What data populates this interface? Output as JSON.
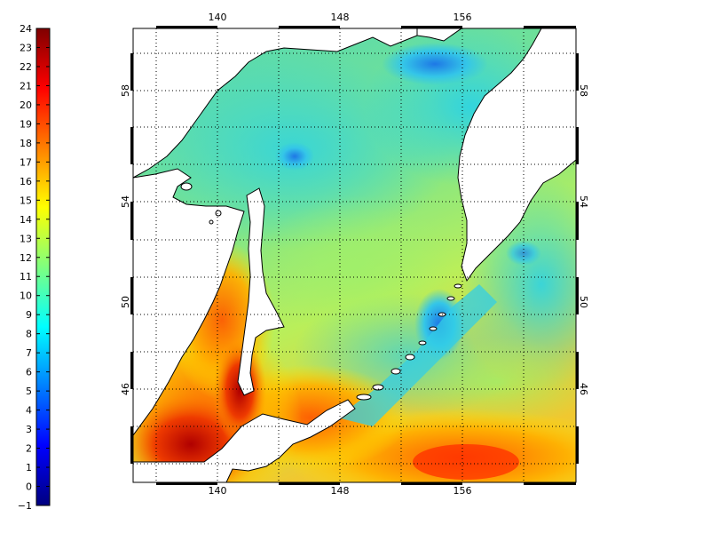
{
  "colorbar": {
    "ticks": [
      "24",
      "23",
      "22",
      "21",
      "20",
      "19",
      "18",
      "17",
      "16",
      "15",
      "14",
      "13",
      "12",
      "11",
      "10",
      "9",
      "8",
      "7",
      "6",
      "5",
      "4",
      "3",
      "2",
      "1",
      "0",
      "−1"
    ]
  },
  "map": {
    "lon_ticks": [
      "140",
      "148",
      "156"
    ],
    "lat_ticks": [
      "58",
      "54",
      "50",
      "46"
    ],
    "land_color": "#ffffff",
    "coast_color": "#000000",
    "grid": "dotted"
  }
}
